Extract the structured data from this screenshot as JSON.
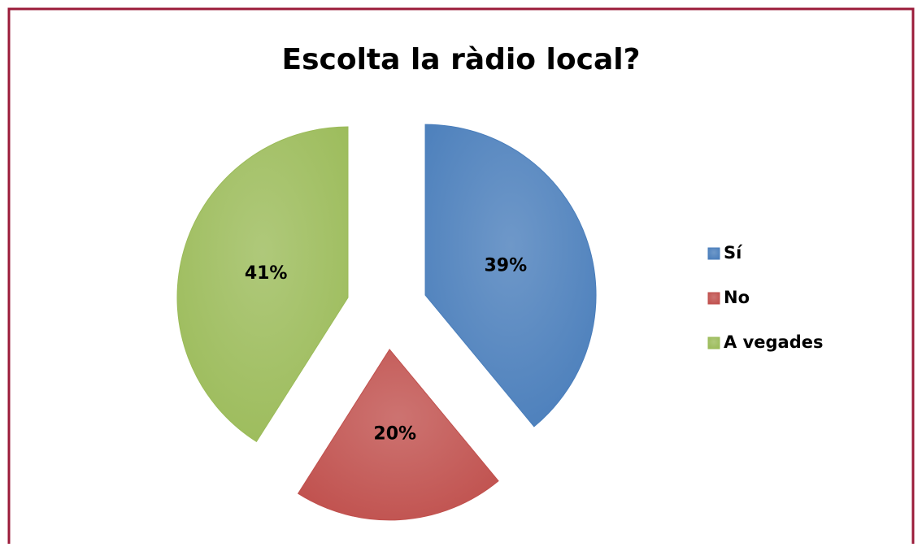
{
  "chart_data": {
    "type": "pie",
    "title": "Escolta la ràdio local?",
    "categories": [
      "Sí",
      "No",
      "A vegades"
    ],
    "values": [
      39,
      20,
      41
    ],
    "value_labels": [
      "39%",
      "20%",
      "41%"
    ],
    "colors": [
      "#4a7ebb",
      "#c0504d",
      "#9bbb59"
    ],
    "legend": "right"
  }
}
